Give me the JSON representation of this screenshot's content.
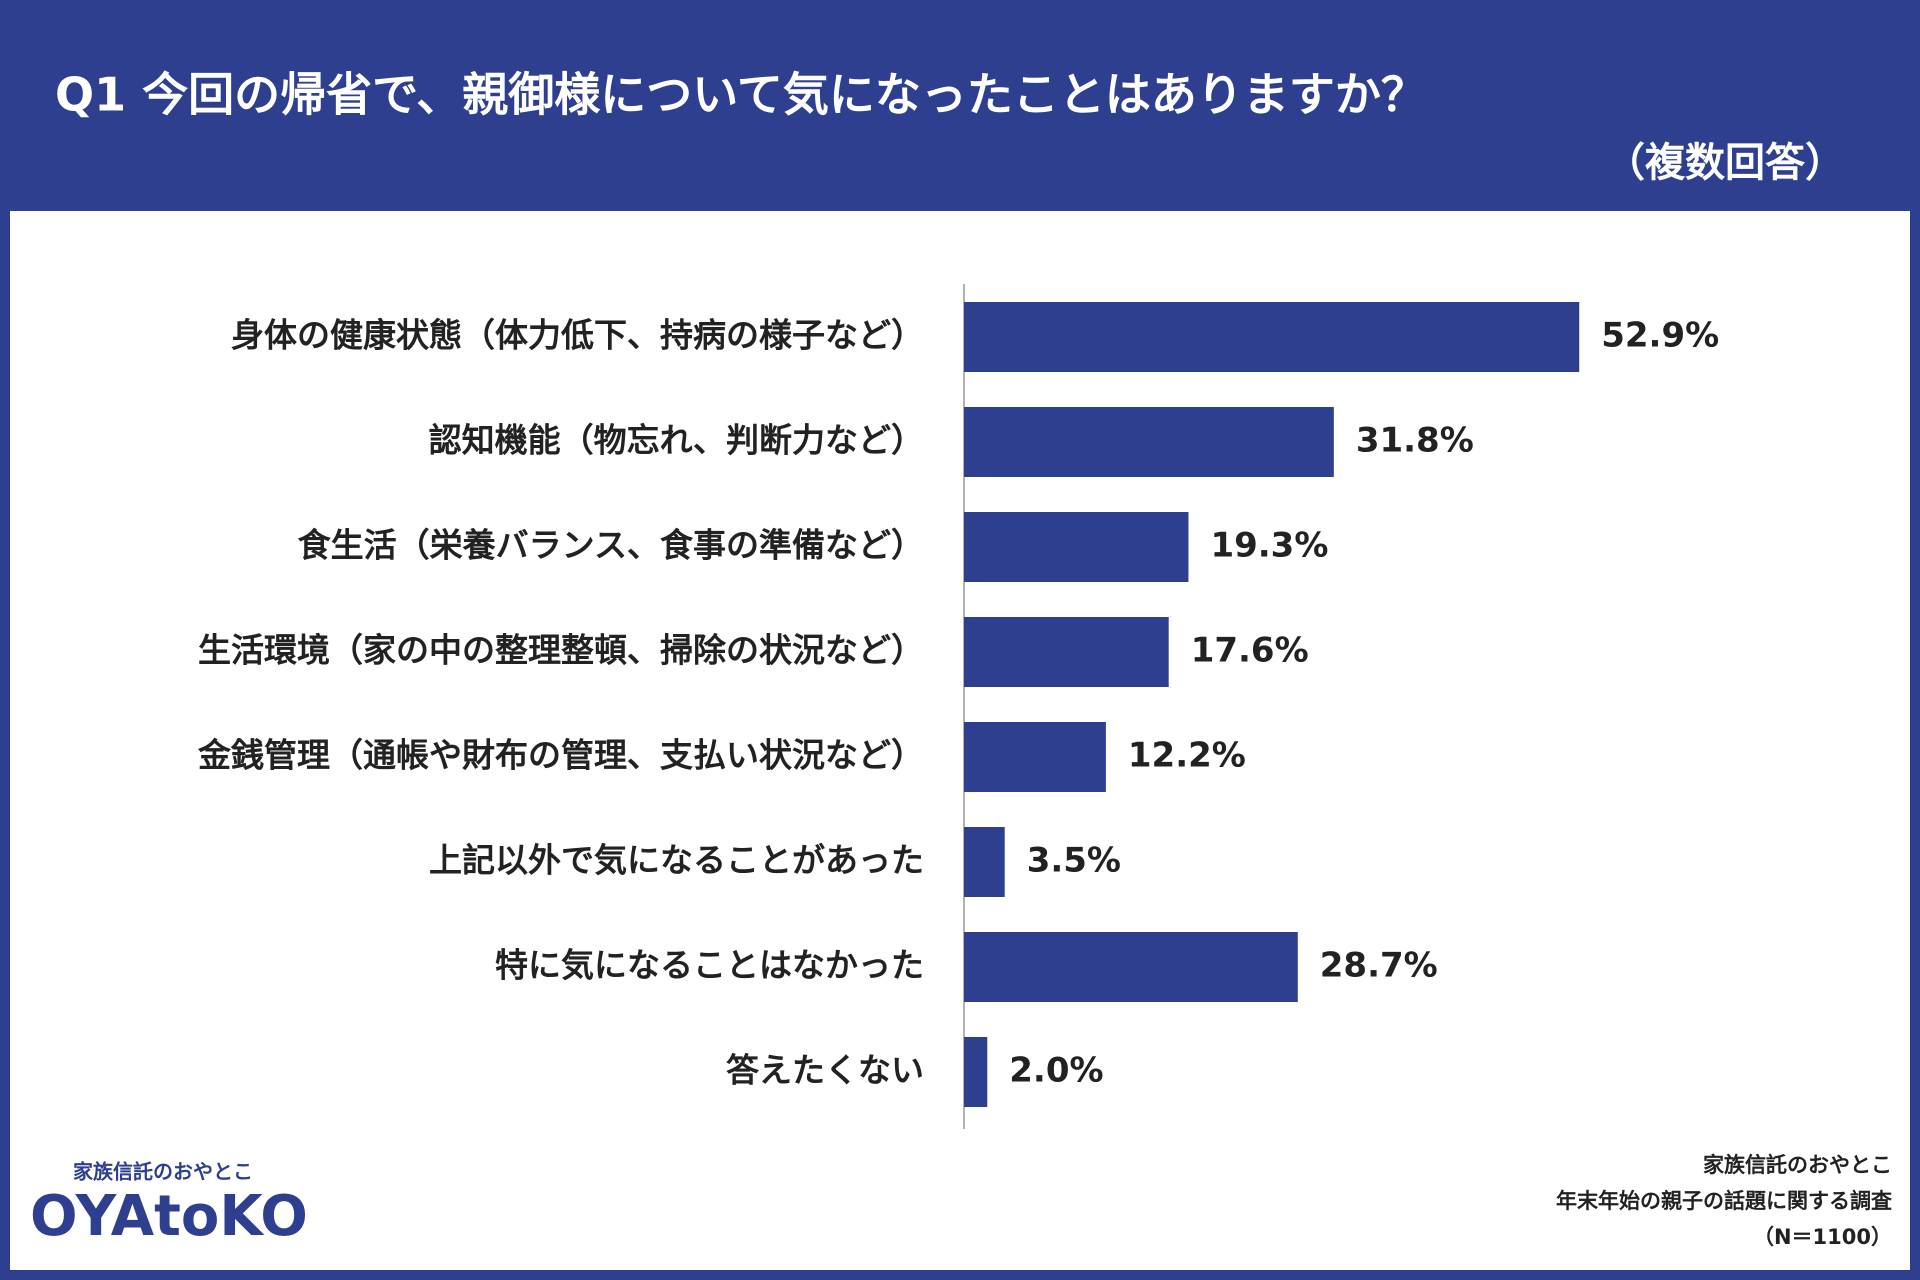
{
  "chart_data": {
    "type": "bar",
    "title": "Q1 今回の帰省で、親御様について気になったことはありますか？",
    "subtitle": "（複数回答）",
    "categories": [
      "身体の健康状態（体力低下、持病の様子など）",
      "認知機能（物忘れ、判断力など）",
      "食生活（栄養バランス、食事の準備など）",
      "生活環境（家の中の整理整頓、掃除の状況など）",
      "金銭管理（通帳や財布の管理、支払い状況など）",
      "上記以外で気になることがあった",
      "特に気になることはなかった",
      "答えたくない"
    ],
    "values": [
      52.9,
      31.8,
      19.3,
      17.6,
      12.2,
      3.5,
      28.7,
      2.0
    ],
    "value_labels": [
      "52.9%",
      "31.8%",
      "19.3%",
      "17.6%",
      "12.2%",
      "3.5%",
      "28.7%",
      "2.0%"
    ],
    "color": "#2e3f8f"
  },
  "logo": {
    "tagline": "家族信託のおやとこ",
    "name": "OYAtoKO"
  },
  "source": [
    "家族信託のおやとこ",
    "年末年始の親子の話題に関する調査",
    "（N＝1100）"
  ]
}
